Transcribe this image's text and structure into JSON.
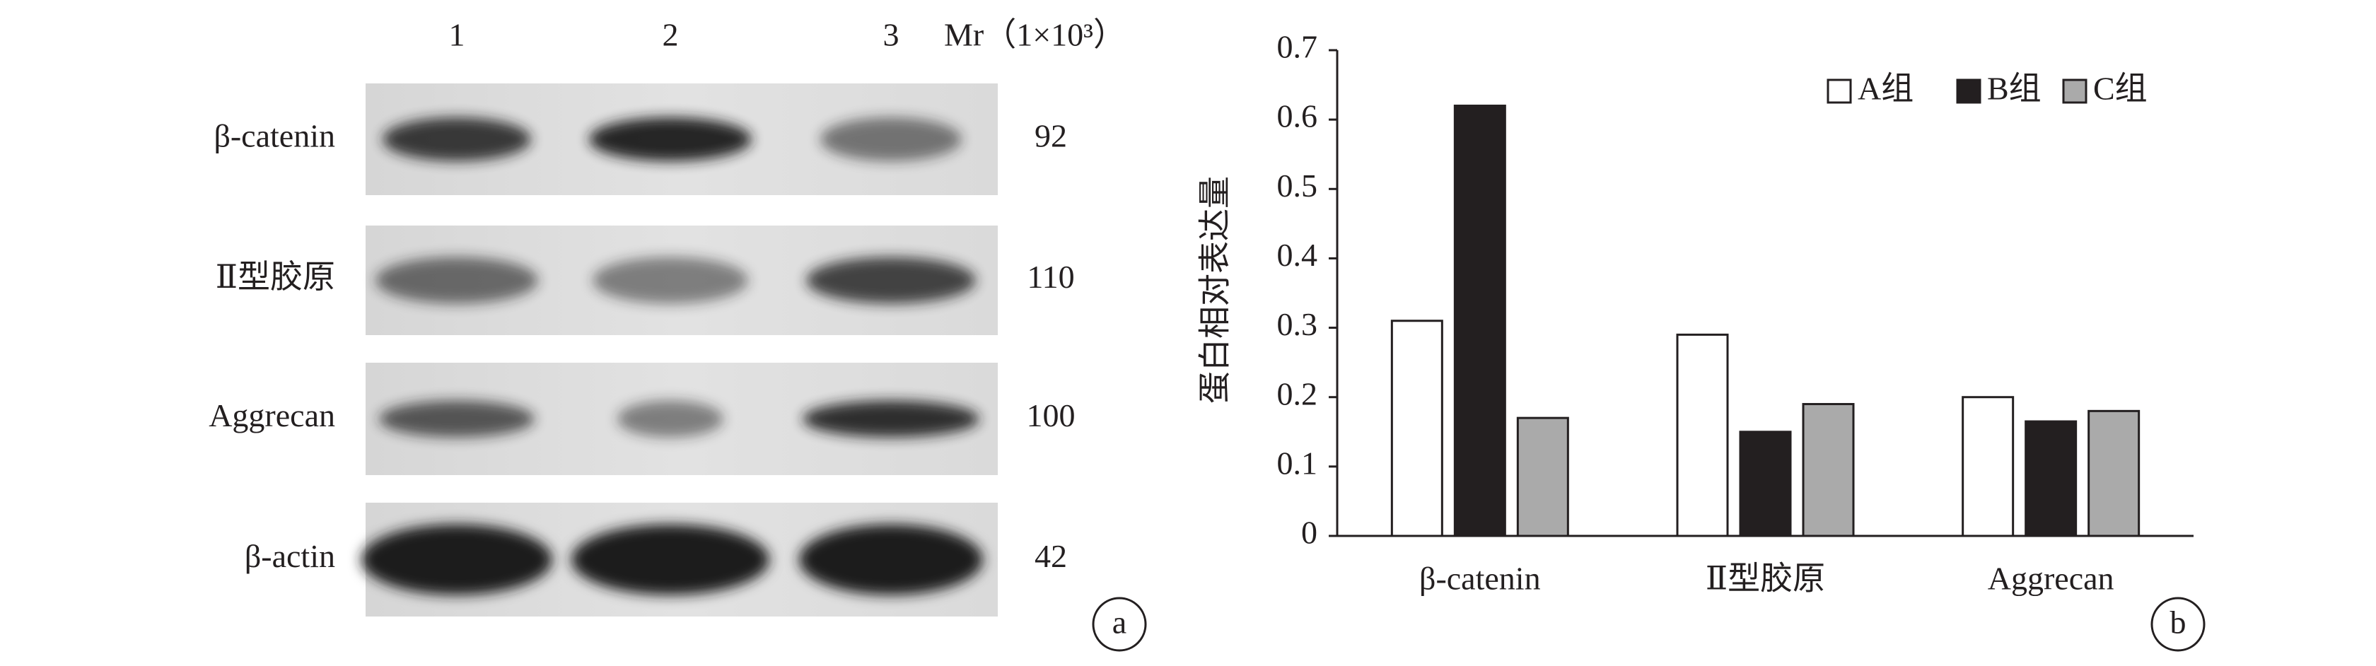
{
  "blot": {
    "lanes": [
      "1",
      "2",
      "3"
    ],
    "mr_label": "Mr（1×10³）",
    "rows": [
      {
        "label": "β-catenin",
        "mr": 92
      },
      {
        "label": "Ⅱ型胶原",
        "mr": 110
      },
      {
        "label": "Aggrecan",
        "mr": 100
      },
      {
        "label": "β-actin",
        "mr": 42
      }
    ],
    "panel_label": "a"
  },
  "chart_data": {
    "type": "bar",
    "ylabel": "蛋白相对表达量",
    "categories": [
      "β-catenin",
      "Ⅱ型胶原",
      "Aggrecan"
    ],
    "series": [
      {
        "name": "A组",
        "color": "#ffffff",
        "values": [
          0.31,
          0.29,
          0.2
        ]
      },
      {
        "name": "B组",
        "color": "#231f20",
        "values": [
          0.62,
          0.15,
          0.165
        ]
      },
      {
        "name": "C组",
        "color": "#aaaaaa",
        "values": [
          0.17,
          0.19,
          0.18
        ]
      }
    ],
    "ylim": [
      0,
      0.7
    ],
    "yticks": [
      0,
      0.1,
      0.2,
      0.3,
      0.4,
      0.5,
      0.6,
      0.7
    ],
    "grid": false,
    "legend": "top-right",
    "panel_label": "b"
  }
}
